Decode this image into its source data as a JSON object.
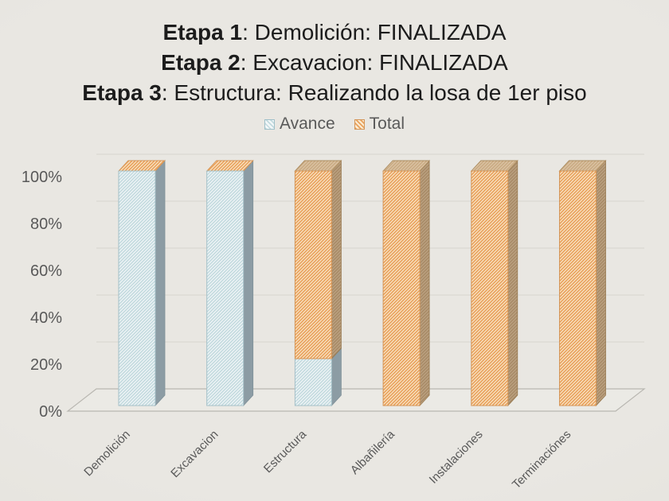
{
  "title": {
    "lines": [
      {
        "bold": "Etapa 1",
        "rest": ": Demolición: FINALIZADA"
      },
      {
        "bold": "Etapa 2",
        "rest": ": Excavacion: FINALIZADA"
      },
      {
        "bold": "Etapa 3",
        "rest": ": Estructura: Realizando la losa de 1er piso"
      }
    ]
  },
  "legend": [
    {
      "label": "Avance",
      "color": "#deeaed"
    },
    {
      "label": "Total",
      "color": "#f2c695"
    }
  ],
  "chart_data": {
    "type": "bar",
    "subtype": "3d-stacked-column",
    "categories": [
      "Demolición",
      "Excavacion",
      "Estructura",
      "Albañilería",
      "Instalaciones",
      "Terminaciónes"
    ],
    "series": [
      {
        "name": "Avance",
        "values": [
          100,
          100,
          20,
          0,
          0,
          0
        ]
      },
      {
        "name": "Total",
        "values": [
          0,
          0,
          80,
          100,
          100,
          100
        ]
      }
    ],
    "yticks": [
      "0%",
      "20%",
      "40%",
      "60%",
      "80%",
      "100%"
    ],
    "ylim": [
      0,
      100
    ],
    "grid": true,
    "legend_position": "top",
    "colors": {
      "avance_line": "#c2dade",
      "avance_base": "#f3f7f8",
      "avance_border": "#a5c0c8",
      "avance_side": "#8c9ca4",
      "total_line": "#e9a25d",
      "total_base": "#faebd2",
      "total_border": "#d49659",
      "total_side": "#a78a66",
      "total_top": "#c9aa82",
      "axis_text": "#595959",
      "gridline": "#dbd9d3",
      "floor_edge": "#b9b7b1",
      "background": "#e8e6e1"
    }
  }
}
